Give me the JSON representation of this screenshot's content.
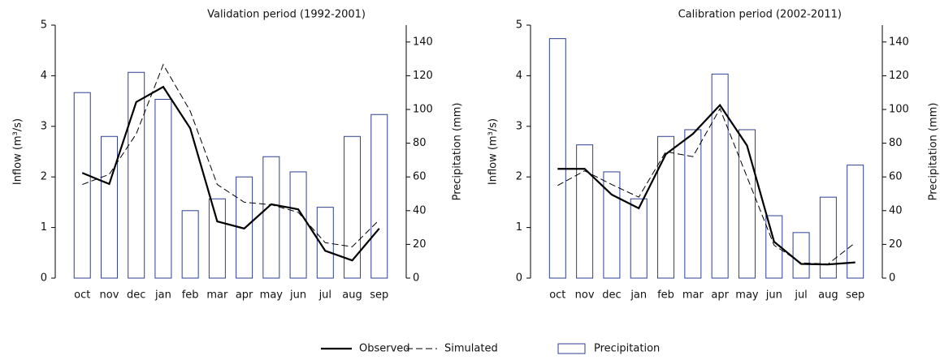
{
  "chart_data": [
    {
      "type": "combo",
      "title": "Validation period (1992-2001)",
      "ylabel": "Inflow (m³/s)",
      "y2label": "Precipitation (mm)",
      "categories": [
        "oct",
        "nov",
        "dec",
        "jan",
        "feb",
        "mar",
        "apr",
        "may",
        "jun",
        "jul",
        "aug",
        "sep"
      ],
      "ylim": [
        0,
        5
      ],
      "yticks": [
        0,
        1,
        2,
        3,
        4,
        5
      ],
      "y2lim": [
        0,
        150
      ],
      "y2ticks": [
        0,
        20,
        40,
        60,
        80,
        100,
        120,
        140
      ],
      "series": [
        {
          "name": "Observed",
          "type": "line",
          "style": "solid",
          "color": "#000000",
          "values": [
            2.08,
            1.86,
            3.48,
            3.78,
            2.96,
            1.12,
            0.98,
            1.46,
            1.36,
            0.54,
            0.35,
            0.98
          ]
        },
        {
          "name": "Simulated",
          "type": "line",
          "style": "dashed",
          "color": "#000000",
          "values": [
            1.85,
            2.05,
            2.85,
            4.22,
            3.3,
            1.85,
            1.5,
            1.45,
            1.3,
            0.7,
            0.62,
            1.15
          ]
        },
        {
          "name": "Precipitation",
          "type": "bar",
          "axis": "y2",
          "color": "#2e3f94",
          "values": [
            110,
            84,
            122,
            106,
            40,
            47,
            60,
            72,
            63,
            42,
            84,
            97
          ]
        }
      ]
    },
    {
      "type": "combo",
      "title": "Calibration period (2002-2011)",
      "ylabel": "Inflow (m³/s)",
      "y2label": "Precipitation (mm)",
      "categories": [
        "oct",
        "nov",
        "dec",
        "jan",
        "feb",
        "mar",
        "apr",
        "may",
        "jun",
        "jul",
        "aug",
        "sep"
      ],
      "ylim": [
        0,
        5
      ],
      "yticks": [
        0,
        1,
        2,
        3,
        4,
        5
      ],
      "y2lim": [
        0,
        150
      ],
      "y2ticks": [
        0,
        20,
        40,
        60,
        80,
        100,
        120,
        140
      ],
      "series": [
        {
          "name": "Observed",
          "type": "line",
          "style": "solid",
          "color": "#000000",
          "values": [
            2.16,
            2.16,
            1.65,
            1.38,
            2.45,
            2.85,
            3.42,
            2.62,
            0.72,
            0.28,
            0.27,
            0.31
          ]
        },
        {
          "name": "Simulated",
          "type": "line",
          "style": "dashed",
          "color": "#000000",
          "values": [
            1.83,
            2.12,
            1.85,
            1.6,
            2.5,
            2.4,
            3.35,
            2.0,
            0.65,
            0.3,
            0.28,
            0.7
          ]
        },
        {
          "name": "Precipitation",
          "type": "bar",
          "axis": "y2",
          "color": "#2e3f94",
          "values": [
            142,
            79,
            63,
            47,
            84,
            88,
            121,
            88,
            37,
            27,
            48,
            67
          ]
        }
      ]
    }
  ]
}
